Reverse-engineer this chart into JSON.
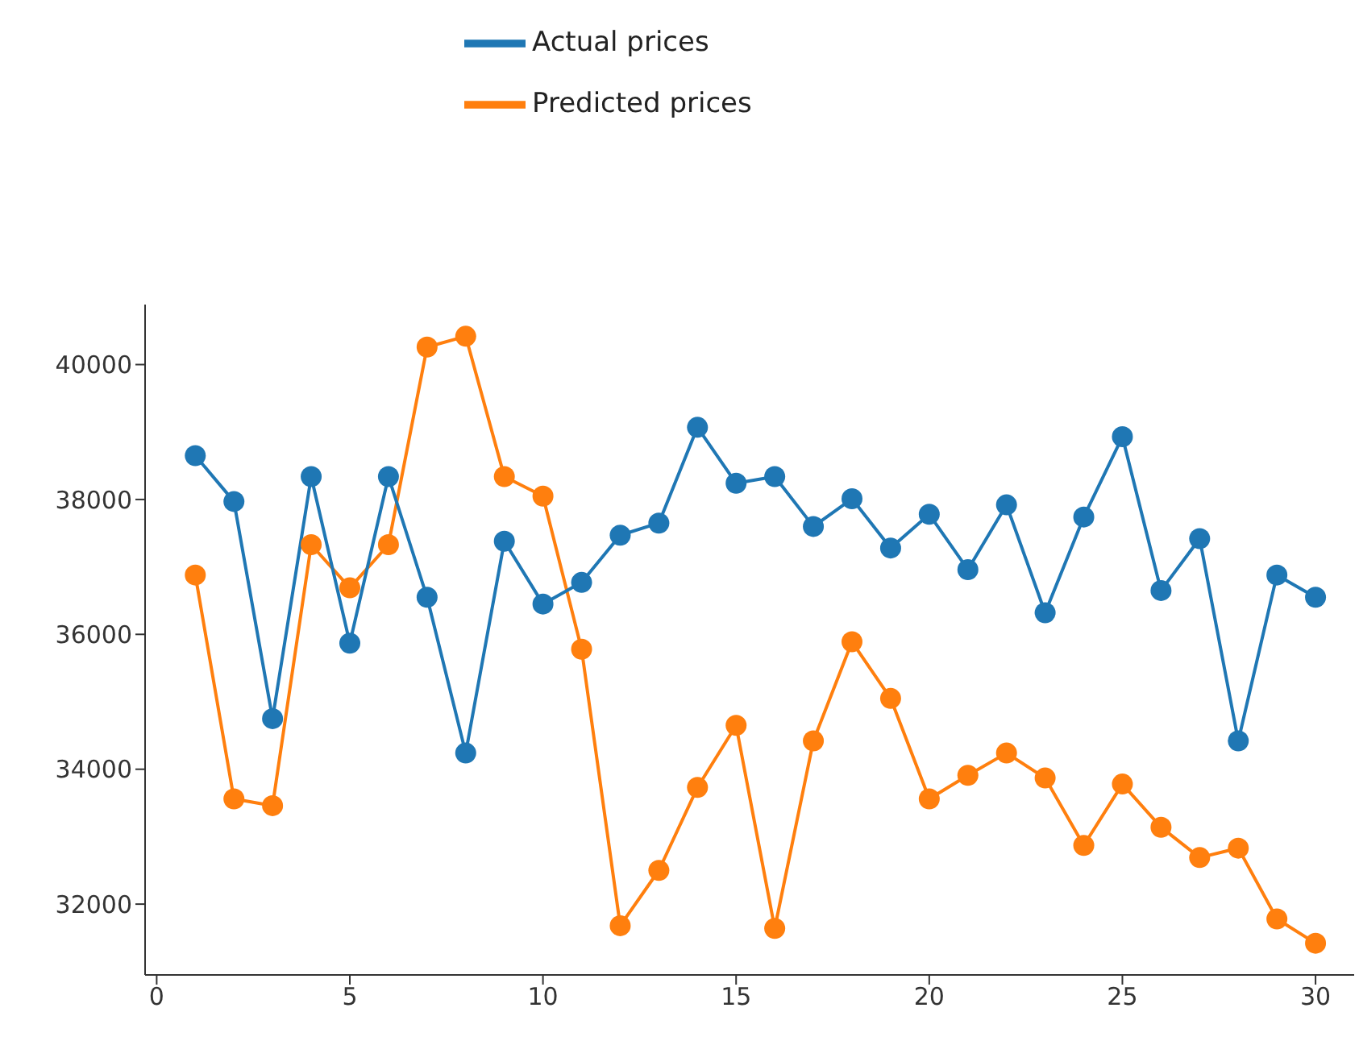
{
  "chart_data": {
    "type": "line",
    "x": [
      1,
      2,
      3,
      4,
      5,
      6,
      7,
      8,
      9,
      10,
      11,
      12,
      13,
      14,
      15,
      16,
      17,
      18,
      19,
      20,
      21,
      22,
      23,
      24,
      25,
      26,
      27,
      28,
      29,
      30
    ],
    "series": [
      {
        "name": "Predicted prices",
        "color": "#ff7f0e",
        "values": [
          36880,
          33560,
          33460,
          37330,
          36690,
          37330,
          40260,
          40420,
          38340,
          38050,
          35780,
          31680,
          32500,
          33730,
          34650,
          31640,
          34420,
          35890,
          35050,
          33560,
          33910,
          34240,
          33870,
          32870,
          33780,
          33140,
          32690,
          32830,
          31780,
          31420
        ]
      },
      {
        "name": "Actual prices",
        "color": "#1f77b4",
        "values": [
          38650,
          37970,
          34750,
          38340,
          35870,
          38340,
          36550,
          34240,
          37380,
          36450,
          36770,
          37470,
          37650,
          39070,
          38240,
          38340,
          37600,
          38010,
          37280,
          37780,
          36960,
          37920,
          36320,
          37740,
          38930,
          36650,
          37420,
          34420,
          36880,
          36550
        ]
      }
    ],
    "xlim": [
      -0.3,
      31
    ],
    "xticks": [
      0,
      5,
      10,
      15,
      20,
      25,
      30
    ],
    "ylim": [
      30950,
      40890
    ],
    "yticks": [
      32000,
      34000,
      36000,
      38000,
      40000
    ],
    "grid": false,
    "legend": "top",
    "marker": "circle",
    "line_style": "solid"
  }
}
